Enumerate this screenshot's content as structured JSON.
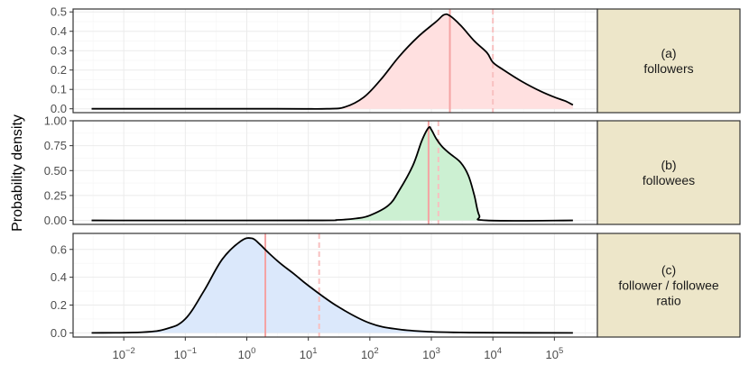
{
  "chart_data": {
    "type": "area",
    "title": "",
    "ylabel": "Probability density",
    "xlabel": "",
    "x_scale": "log10",
    "x_tick_values": [
      0.01,
      0.1,
      1,
      10,
      100,
      1000,
      10000,
      100000
    ],
    "x_tick_labels": [
      {
        "base": "10",
        "exp": "−2"
      },
      {
        "base": "10",
        "exp": "−1"
      },
      {
        "base": "10",
        "exp": "0"
      },
      {
        "base": "10",
        "exp": "1"
      },
      {
        "base": "10",
        "exp": "2"
      },
      {
        "base": "10",
        "exp": "3"
      },
      {
        "base": "10",
        "exp": "4"
      },
      {
        "base": "10",
        "exp": "5"
      }
    ],
    "xlim": [
      0.0015,
      500000
    ],
    "grid": true,
    "facets": [
      {
        "strip_lines": [
          "(a)",
          "followers"
        ],
        "fill": "#ffe0e0",
        "ylim": [
          -0.02,
          0.515
        ],
        "y_ticks": [
          0.0,
          0.1,
          0.2,
          0.3,
          0.4,
          0.5
        ],
        "y_tick_labels": [
          "0.0",
          "0.1",
          "0.2",
          "0.3",
          "0.4",
          "0.5"
        ],
        "median": 2000,
        "mean": 10000,
        "x": [
          0.003,
          3,
          20,
          40,
          80,
          150,
          300,
          600,
          1200,
          1600,
          2000,
          3000,
          5000,
          8000,
          10000,
          15000,
          30000,
          60000,
          100000,
          150000,
          200000
        ],
        "y": [
          0.0,
          0.0,
          0.0,
          0.01,
          0.06,
          0.15,
          0.27,
          0.37,
          0.45,
          0.485,
          0.48,
          0.43,
          0.35,
          0.29,
          0.24,
          0.2,
          0.14,
          0.09,
          0.06,
          0.04,
          0.02
        ]
      },
      {
        "strip_lines": [
          "(b)",
          "followees"
        ],
        "fill": "#ccf0d2",
        "ylim": [
          -0.04,
          1.0
        ],
        "y_ticks": [
          0.0,
          0.25,
          0.5,
          0.75,
          1.0
        ],
        "y_tick_labels": [
          "0.00",
          "0.25",
          "0.50",
          "0.75",
          "1.00"
        ],
        "median": 900,
        "mean": 1300,
        "x": [
          0.003,
          10,
          30,
          60,
          100,
          200,
          300,
          500,
          700,
          900,
          1000,
          1200,
          1500,
          2000,
          3000,
          4000,
          5000,
          6000,
          8000,
          200000
        ],
        "y": [
          0.0,
          0.0,
          0.005,
          0.02,
          0.05,
          0.15,
          0.3,
          0.55,
          0.8,
          0.93,
          0.91,
          0.82,
          0.74,
          0.67,
          0.58,
          0.45,
          0.25,
          0.05,
          0.0,
          0.0
        ]
      },
      {
        "strip_lines": [
          "(c)",
          "follower / followee",
          "ratio"
        ],
        "fill": "#dbe8fb",
        "ylim": [
          -0.03,
          0.715
        ],
        "y_ticks": [
          0.0,
          0.2,
          0.4,
          0.6
        ],
        "y_tick_labels": [
          "0.0",
          "0.2",
          "0.4",
          "0.6"
        ],
        "median": 2,
        "mean": 15,
        "x": [
          0.003,
          0.02,
          0.05,
          0.1,
          0.2,
          0.4,
          0.8,
          1.2,
          1.6,
          2.2,
          3.5,
          6,
          10,
          30,
          100,
          300,
          1000,
          3000,
          10000,
          200000
        ],
        "y": [
          0.0,
          0.005,
          0.03,
          0.1,
          0.3,
          0.53,
          0.66,
          0.68,
          0.64,
          0.58,
          0.5,
          0.42,
          0.34,
          0.19,
          0.07,
          0.025,
          0.008,
          0.003,
          0.001,
          0.0
        ]
      }
    ],
    "median_line_color": "#f4a3a3",
    "mean_line_color": "#f8c0c0",
    "strip_fill": "#ede6c9"
  }
}
